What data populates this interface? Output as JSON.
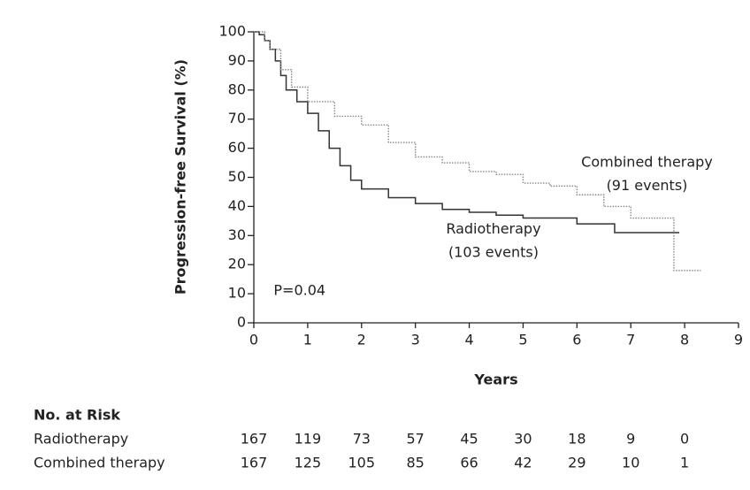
{
  "chart_data": {
    "type": "step",
    "y_label": "Progression-free Survival (%)",
    "x_label": "Years",
    "xlim": [
      0,
      9
    ],
    "xticks": [
      0,
      1,
      2,
      3,
      4,
      5,
      6,
      7,
      8,
      9
    ],
    "ylim": [
      0,
      100
    ],
    "yticks": [
      0,
      10,
      20,
      30,
      40,
      50,
      60,
      70,
      80,
      90,
      100
    ],
    "series": [
      {
        "name": "Radiotherapy",
        "color": "#333333",
        "style": "solid",
        "x": [
          0,
          0.1,
          0.2,
          0.3,
          0.4,
          0.5,
          0.6,
          0.8,
          1.0,
          1.2,
          1.4,
          1.6,
          1.8,
          2.0,
          2.5,
          3.0,
          3.5,
          4.0,
          4.5,
          5.0,
          6.0,
          6.7,
          7.9
        ],
        "values": [
          100,
          99,
          97,
          94,
          90,
          85,
          80,
          76,
          72,
          66,
          60,
          54,
          49,
          46,
          43,
          41,
          39,
          38,
          37,
          36,
          34,
          31,
          31
        ]
      },
      {
        "name": "Combined therapy",
        "color": "#888888",
        "style": "dotted",
        "x": [
          0,
          0.2,
          0.3,
          0.5,
          0.7,
          1.0,
          1.5,
          2.0,
          2.5,
          3.0,
          3.5,
          4.0,
          4.5,
          5.0,
          5.5,
          6.0,
          6.5,
          7.0,
          7.8,
          8.3
        ],
        "values": [
          100,
          97,
          94,
          87,
          81,
          76,
          71,
          68,
          62,
          57,
          55,
          52,
          51,
          48,
          47,
          44,
          40,
          36,
          18,
          18
        ]
      }
    ],
    "annotations": [
      {
        "text": "Combined therapy",
        "x": 7.3,
        "y": 55
      },
      {
        "text": "(91 events)",
        "x": 7.3,
        "y": 47
      },
      {
        "text": "Radiotherapy",
        "x": 4.45,
        "y": 32
      },
      {
        "text": "(103 events)",
        "x": 4.45,
        "y": 24
      },
      {
        "text": "P=0.04",
        "x": 0.85,
        "y": 11
      }
    ]
  },
  "risk_table": {
    "title": "No. at Risk",
    "rows": [
      {
        "label": "Radiotherapy",
        "values": [
          167,
          119,
          73,
          57,
          45,
          30,
          18,
          9,
          0
        ]
      },
      {
        "label": "Combined therapy",
        "values": [
          167,
          125,
          105,
          85,
          66,
          42,
          29,
          10,
          1
        ]
      }
    ]
  }
}
